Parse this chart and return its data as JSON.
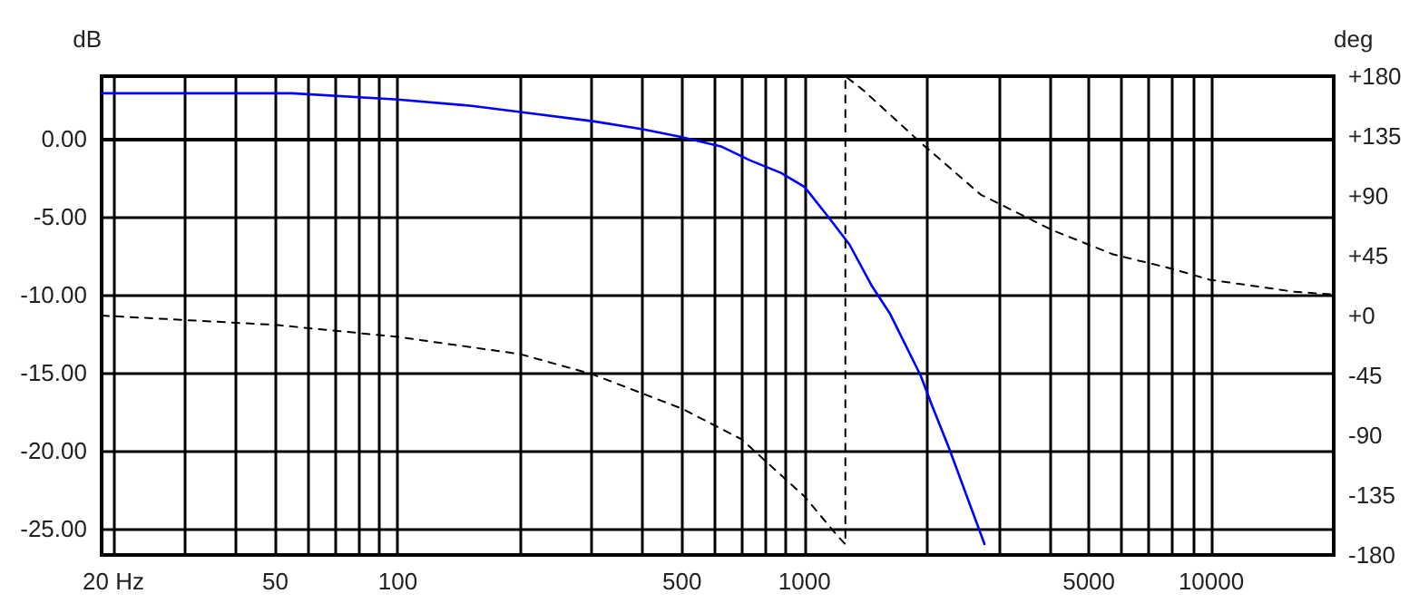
{
  "chart_data": {
    "type": "line",
    "ylabel": "dB",
    "y2label": "deg",
    "xlim": [
      18.7,
      20000
    ],
    "xticks": [
      {
        "value": 20,
        "label": "20 Hz"
      },
      {
        "value": 30,
        "label": null
      },
      {
        "value": 40,
        "label": null
      },
      50,
      {
        "value": 60,
        "label": null
      },
      {
        "value": 70,
        "label": null
      },
      {
        "value": 80,
        "label": null
      },
      {
        "value": 90,
        "label": null
      },
      100,
      {
        "value": 200,
        "label": null
      },
      {
        "value": 300,
        "label": null
      },
      {
        "value": 400,
        "label": null
      },
      500,
      {
        "value": 600,
        "label": null
      },
      {
        "value": 700,
        "label": null
      },
      {
        "value": 800,
        "label": null
      },
      {
        "value": 900,
        "label": null
      },
      1000,
      {
        "value": 2000,
        "label": null
      },
      {
        "value": 3000,
        "label": null
      },
      {
        "value": 4000,
        "label": null
      },
      5000,
      {
        "value": 6000,
        "label": null
      },
      {
        "value": 7000,
        "label": null
      },
      {
        "value": 8000,
        "label": null
      },
      {
        "value": 9000,
        "label": null
      },
      10000,
      {
        "value": 20000,
        "label": null
      }
    ],
    "ylim": [
      -26.7,
      4
    ],
    "yticks": [
      {
        "value": 0,
        "label": "0.00"
      },
      {
        "value": -5,
        "label": "-5.00"
      },
      {
        "value": -10,
        "label": "-10.00"
      },
      {
        "value": -15,
        "label": "-15.00"
      },
      {
        "value": -20,
        "label": "-20.00"
      },
      {
        "value": -25,
        "label": "-25.00"
      }
    ],
    "y2lim": [
      -180,
      180
    ],
    "y2ticks": [
      {
        "value": 180,
        "label": "+180"
      },
      {
        "value": 135,
        "label": "+135"
      },
      {
        "value": 90,
        "label": "+90"
      },
      {
        "value": 45,
        "label": "+45"
      },
      {
        "value": 0,
        "label": "+0"
      },
      -45,
      -90,
      -135,
      -180
    ],
    "grid": true,
    "log": "x",
    "series": [
      {
        "color": "#0000ff",
        "line_style": "solid",
        "x": [
          18.7,
          55,
          100,
          152,
          200,
          304,
          400,
          497,
          623,
          735,
          875,
          1000,
          1150,
          1290,
          1460,
          1620,
          1930,
          2050,
          2270,
          2770
        ],
        "values": [
          2.9,
          2.9,
          2.5,
          2.1,
          1.7,
          1.1,
          0.6,
          0.1,
          -0.5,
          -1.4,
          -2.2,
          -3.1,
          -5.1,
          -6.8,
          -9.4,
          -11.2,
          -15.2,
          -17,
          -19.9,
          -26
        ]
      },
      {
        "color": "#000000",
        "line_style": "dashed",
        "axis": "y2",
        "x": [
          18.7,
          50,
          100,
          200,
          300,
          500,
          700,
          1000,
          1200,
          1260,
          1260,
          1400,
          1930,
          2710,
          4080,
          5740,
          8060,
          9900,
          15900,
          19600
        ],
        "values": [
          0,
          -7,
          -16,
          -29,
          -44,
          -70,
          -93,
          -136,
          -165,
          -172,
          180,
          169,
          130,
          91,
          64,
          46,
          35,
          27,
          18,
          16
        ]
      }
    ]
  }
}
